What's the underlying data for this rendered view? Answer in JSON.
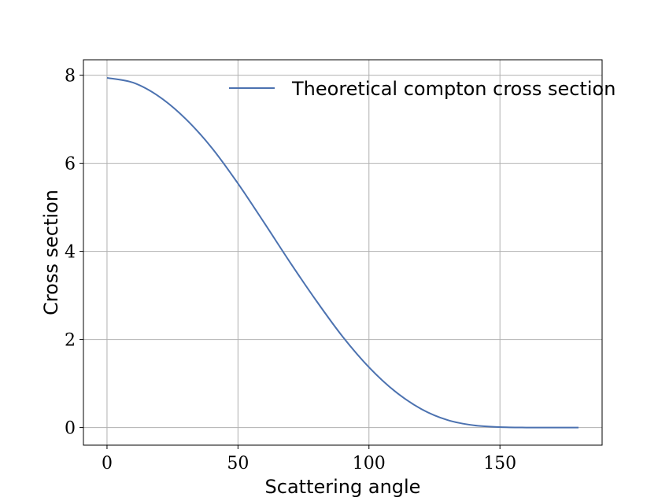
{
  "chart_data": {
    "type": "line",
    "title": "",
    "xlabel": "Scattering angle",
    "ylabel": "Cross section",
    "xlim": [
      -9,
      189
    ],
    "ylim": [
      -0.4,
      8.35
    ],
    "xticks": [
      0,
      50,
      100,
      150
    ],
    "yticks": [
      0,
      2,
      4,
      6,
      8
    ],
    "xtick_labels": [
      "0",
      "50",
      "100",
      "150"
    ],
    "ytick_labels": [
      "0",
      "2",
      "4",
      "6",
      "8"
    ],
    "grid": true,
    "legend": {
      "placement": "top-right"
    },
    "series": [
      {
        "name": "Theoretical compton cross section",
        "color": "#4c72b0",
        "x": [
          0,
          10,
          20,
          30,
          40,
          50,
          60,
          70,
          80,
          90,
          100,
          110,
          120,
          130,
          140,
          150,
          160,
          170,
          180
        ],
        "y": [
          7.94,
          7.83,
          7.51,
          7.01,
          6.35,
          5.54,
          4.65,
          3.74,
          2.87,
          2.06,
          1.37,
          0.82,
          0.42,
          0.17,
          0.05,
          0.01,
          0.0,
          0.0,
          0.0
        ]
      }
    ]
  }
}
